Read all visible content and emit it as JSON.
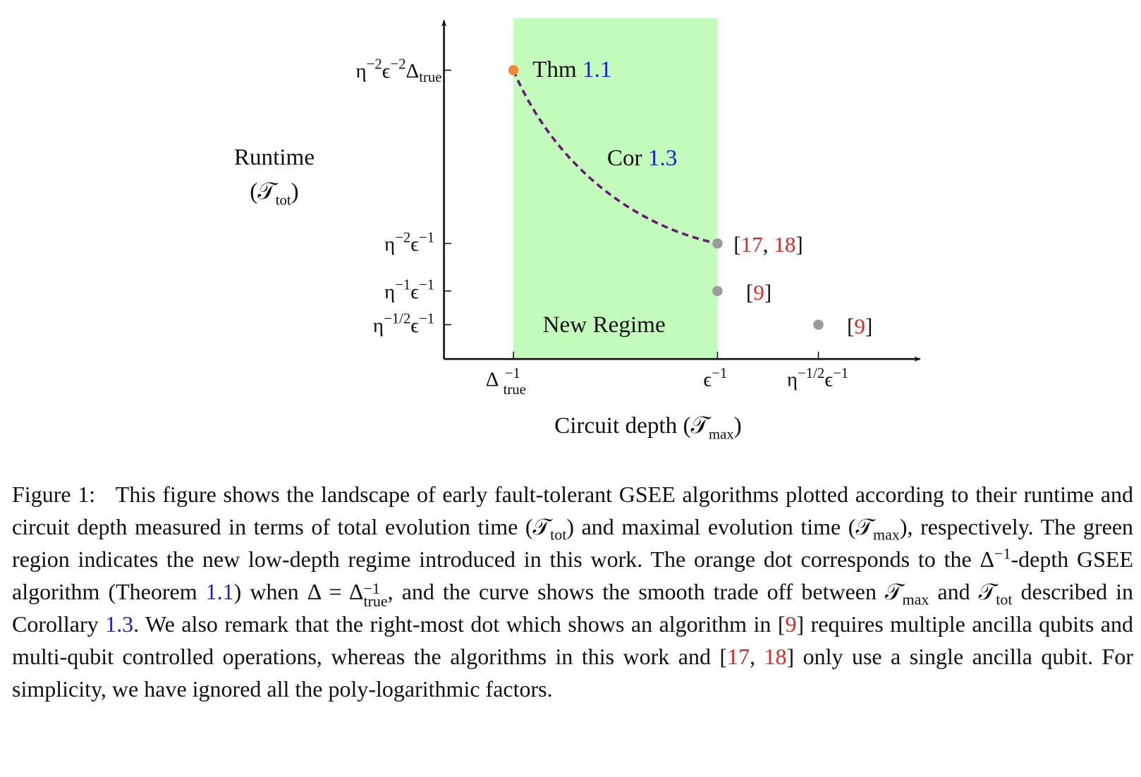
{
  "figure": {
    "y_label": [
      "Runtime",
      "(",
      "𝒯",
      "tot",
      ")"
    ],
    "x_label": [
      "Circuit depth (",
      "𝒯",
      "max",
      ")"
    ],
    "y_ticks": [
      [
        "η",
        "−2",
        "ϵ",
        "−2",
        "Δ",
        "true"
      ],
      [
        "η",
        "−2",
        "ϵ",
        "−1"
      ],
      [
        "η",
        "−1",
        "ϵ",
        "−1"
      ],
      [
        "η",
        "−1/2",
        "ϵ",
        "−1"
      ]
    ],
    "x_ticks": [
      [
        "Δ",
        "−1",
        "true"
      ],
      [
        "ϵ",
        "−1"
      ],
      [
        "η",
        "−1/2",
        "ϵ",
        "−1"
      ]
    ],
    "annotations": [
      [
        "Thm ",
        "1.1"
      ],
      [
        "Cor ",
        "1.3"
      ],
      [
        "[",
        "17",
        ", ",
        "18",
        "]"
      ],
      [
        "[",
        "9",
        "]"
      ],
      [
        "[",
        "9",
        "]"
      ],
      [
        "New Regime"
      ]
    ]
  },
  "caption": {
    "parts": [
      "Figure 1:",
      "This figure shows the landscape of early fault-tolerant GSEE algorithms plotted according to their runtime and circuit depth measured in terms of total evolution time (",
      "𝒯",
      "tot",
      ") and maximal evolution time (",
      "𝒯",
      "max",
      "), respectively. The green region indicates the new low-depth regime introduced in this work. The orange dot corresponds to the ",
      "Δ",
      "−1",
      "-depth GSEE algorithm (Theorem ",
      "1.1",
      ") when Δ = Δ",
      "−1",
      "true",
      ", and the curve shows the smooth trade off between ",
      "𝒯",
      "max",
      " and ",
      "𝒯",
      "tot",
      " described in Corollary ",
      "1.3",
      ". We also remark that the right-most dot which shows an algorithm in [",
      "9",
      "] requires multiple ancilla qubits and multi-qubit controlled operations, whereas the algorithms in this work and [",
      "17",
      ", ",
      "18",
      "] only use a single ancilla qubit. For simplicity, we have ignored all the poly-logarithmic factors."
    ]
  }
}
